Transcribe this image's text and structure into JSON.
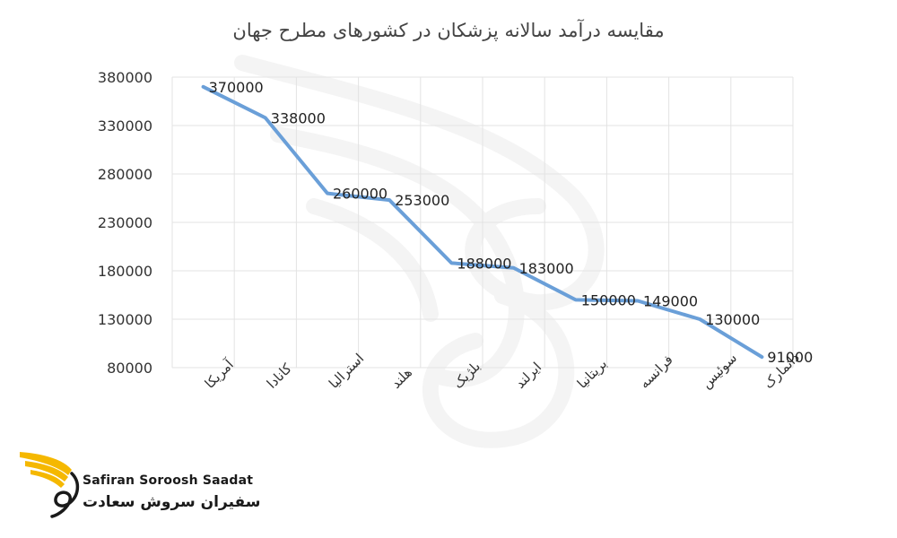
{
  "chart_data": {
    "type": "line",
    "title": "مقایسه درآمد سالانه پزشکان در کشورهای مطرح جهان",
    "categories": [
      "آمریکا",
      "کانادا",
      "استرالیا",
      "هلند",
      "بلژیک",
      "ایرلند",
      "بریتانیا",
      "فرانسه",
      "سوئیس",
      "دانمارک"
    ],
    "series": [
      {
        "values": [
          370000,
          338000,
          260000,
          253000,
          188000,
          183000,
          150000,
          149000,
          130000,
          91000
        ]
      }
    ],
    "data_labels": [
      "370000",
      "338000",
      "260000",
      "253000",
      "188000",
      "183000",
      "150000",
      "149000",
      "130000",
      "91000"
    ],
    "y_ticks": [
      80000,
      130000,
      180000,
      230000,
      280000,
      330000,
      380000
    ],
    "ylim": [
      80000,
      380000
    ],
    "xlabel": "",
    "ylabel": "",
    "grid": "vertical and horizontal",
    "line_color": "#6a9fd8",
    "grid_color": "#e3e3e3"
  },
  "brand": {
    "name_en": "Safiran Soroosh Saadat",
    "name_fa": "سفیران سروش سعادت",
    "accent_color": "#f5b800"
  }
}
